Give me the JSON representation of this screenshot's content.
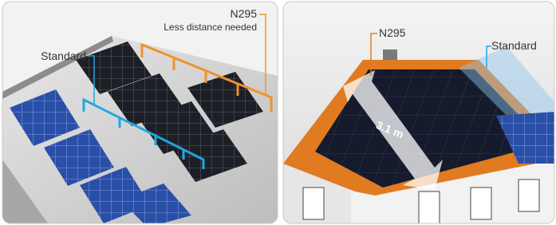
{
  "left_panel": {
    "n295_label": "N295",
    "n295_caption": "Less distance needed",
    "standard_label": "Standard"
  },
  "right_panel": {
    "n295_label": "N295",
    "standard_label": "Standard",
    "length_label": "3.1 m"
  }
}
